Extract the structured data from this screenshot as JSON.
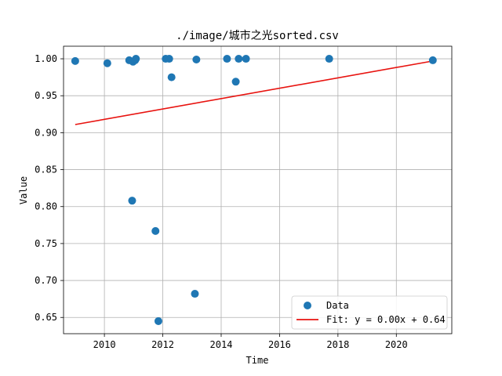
{
  "chart_data": {
    "type": "scatter",
    "title": "./image/城市之光sorted.csv",
    "xlabel": "Time",
    "ylabel": "Value",
    "xlim": [
      2008.6,
      2021.9
    ],
    "ylim": [
      0.628,
      1.017
    ],
    "xticks": [
      2010,
      2012,
      2014,
      2016,
      2018,
      2020
    ],
    "yticks": [
      0.65,
      0.7,
      0.75,
      0.8,
      0.85,
      0.9,
      0.95,
      1.0
    ],
    "ytick_labels": [
      "0.65",
      "0.70",
      "0.75",
      "0.80",
      "0.85",
      "0.90",
      "0.95",
      "1.00"
    ],
    "grid": true,
    "legend_position": "lower-right",
    "series": [
      {
        "name": "Data",
        "kind": "scatter",
        "color": "#1f77b4",
        "points": [
          [
            2009.0,
            0.997
          ],
          [
            2010.1,
            0.994
          ],
          [
            2010.85,
            0.998
          ],
          [
            2010.95,
            0.808
          ],
          [
            2010.98,
            0.996
          ],
          [
            2011.05,
            0.998
          ],
          [
            2011.08,
            1.0
          ],
          [
            2011.75,
            0.767
          ],
          [
            2011.85,
            0.645
          ],
          [
            2012.1,
            1.0
          ],
          [
            2012.22,
            1.0
          ],
          [
            2012.3,
            0.975
          ],
          [
            2013.1,
            0.682
          ],
          [
            2013.15,
            0.999
          ],
          [
            2014.2,
            1.0
          ],
          [
            2014.5,
            0.969
          ],
          [
            2014.6,
            1.0
          ],
          [
            2014.85,
            1.0
          ],
          [
            2017.7,
            1.0
          ],
          [
            2021.25,
            0.998
          ]
        ]
      },
      {
        "name": "Fit: y = 0.00x + 0.64",
        "kind": "line",
        "color": "#e8130f",
        "points": [
          [
            2009.0,
            0.911
          ],
          [
            2021.25,
            0.997
          ]
        ]
      }
    ]
  }
}
